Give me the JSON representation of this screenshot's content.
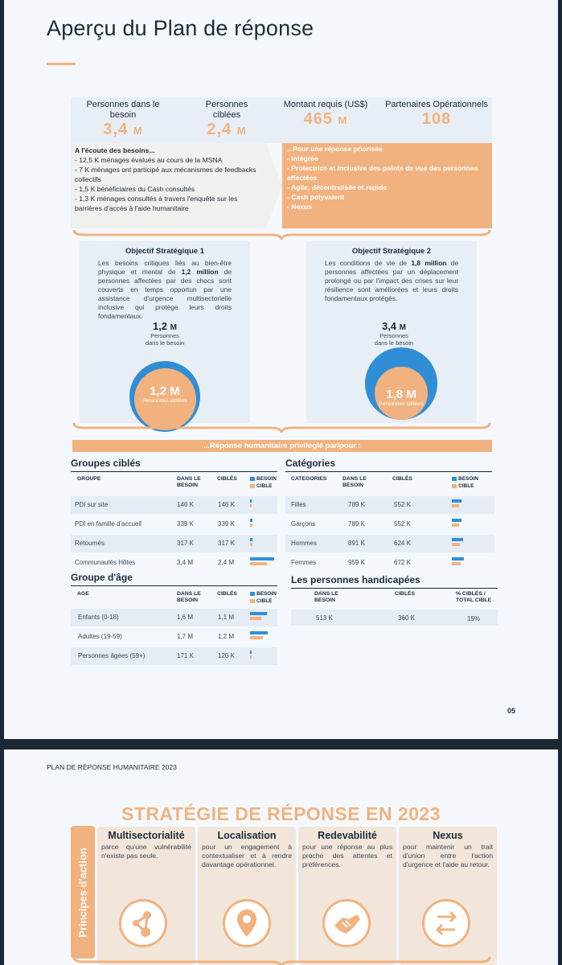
{
  "page1": {
    "title": "Aperçu du Plan de réponse",
    "kpis": [
      {
        "label": "Personnes dans le besoin",
        "value": "3,4",
        "unit": "M"
      },
      {
        "label": "Personnes ciblées",
        "value": "2,4",
        "unit": "M"
      },
      {
        "label": "Montant requis (US$)",
        "value": "465",
        "unit": "M"
      },
      {
        "label": "Partenaires Opérationnels",
        "value": "108",
        "unit": ""
      }
    ],
    "ecoute": {
      "heading": "A l'écoute des besoins...",
      "items": [
        "12,5 K ménages évalués au cours de la MSNA",
        "7 K ménages ont participé aux mécanismes de feedbacks collectifs",
        "1,5 K bénéficiaires du Cash consultés",
        "1,3 K ménages consultés à travers l'enquête sur les barrières d'accès à l'aide humanitaire"
      ]
    },
    "reponse": {
      "heading": "...Pour une réponse priorisée",
      "items": [
        "Intégrée",
        "Protectrice et inclusive des points de vue des personnes affectées",
        "Agile, décentralisée et rapide",
        "Cash polyvalent",
        "Nexus"
      ]
    },
    "objectifs": [
      {
        "title": "Objectif Stratégique 1",
        "text_before": "Les besoins critiques liés au bien-être physique et mental de ",
        "text_bold": "1,2 million",
        "text_after": " de personnes affectées par des chocs sont couverts en temps opportun par une assistance d'urgence multisectorielle inclusive qui protège leurs droits fondamentaux.",
        "besoin_value": "1,2",
        "besoin_unit": "M",
        "besoin_label": "Personnes dans le besoin",
        "cible_value": "1,2 M",
        "cible_label": "Personnes ciblées",
        "cible_fraction": 1.0
      },
      {
        "title": "Objectif Stratégique 2",
        "text_before": "Les conditions de vie de ",
        "text_bold": "1,8 million",
        "text_after": " de personnes affectées par un déplacement prolongé ou par l'impact des crises sur leur résilience sont améliorées et leurs droits fondamentaux protégés.",
        "besoin_value": "3,4",
        "besoin_unit": "M",
        "besoin_label": "Personnes dans le besoin",
        "cible_value": "1,8 M",
        "cible_label": "Personnes ciblées",
        "cible_fraction": 0.53
      }
    ],
    "banner": "...Réponse humanitaire privilégié par/pour :",
    "legend": {
      "besoin": "BESOIN",
      "cible": "CIBLE",
      "cible2": "CIBLE"
    },
    "groupes": {
      "title": "Groupes ciblés",
      "headers": [
        "GROUPE",
        "DANS LE BESOIN",
        "CIBLÉS"
      ],
      "rows": [
        {
          "label": "PDI sur site",
          "besoin": "146 K",
          "cibles": "146 K",
          "b": 0.146,
          "c": 0.146
        },
        {
          "label": "PDI en famille d'accueil",
          "besoin": "339 K",
          "cibles": "339 K",
          "b": 0.339,
          "c": 0.339
        },
        {
          "label": "Retournés",
          "besoin": "317 K",
          "cibles": "317 K",
          "b": 0.317,
          "c": 0.317
        },
        {
          "label": "Communautés Hôtes",
          "besoin": "3,4 M",
          "cibles": "2,4 M",
          "b": 3.4,
          "c": 2.4
        }
      ]
    },
    "categories": {
      "title": "Catégories",
      "headers": [
        "CATEGORIES",
        "DANS LE BESOIN",
        "CIBLÉS"
      ],
      "rows": [
        {
          "label": "Filles",
          "besoin": "789 K",
          "cibles": "552 K",
          "b": 789,
          "c": 552
        },
        {
          "label": "Garçons",
          "besoin": "789 K",
          "cibles": "552 K",
          "b": 789,
          "c": 552
        },
        {
          "label": "Hommes",
          "besoin": "891 K",
          "cibles": "624 K",
          "b": 891,
          "c": 624
        },
        {
          "label": "Femmes",
          "besoin": "959 K",
          "cibles": "672 K",
          "b": 959,
          "c": 672
        }
      ]
    },
    "age": {
      "title": "Groupe d'âge",
      "headers": [
        "AGE",
        "DANS LE BESOIN",
        "CIBLÉS"
      ],
      "rows": [
        {
          "label": "Enfants (0-18)",
          "besoin": "1,6 M",
          "cibles": "1,1 M",
          "b": 1.6,
          "c": 1.1
        },
        {
          "label": "Adultes (19-59)",
          "besoin": "1,7 M",
          "cibles": "1,2 M",
          "b": 1.7,
          "c": 1.2
        },
        {
          "label": "Personnes âgées (59+)",
          "besoin": "171 K",
          "cibles": "120 K",
          "b": 0.171,
          "c": 0.12
        }
      ]
    },
    "handicap": {
      "title": "Les personnes handicapées",
      "headers": [
        "DANS LE BESOIN",
        "CIBLÉS",
        "% CIBLÉS / TOTAL CIBLE"
      ],
      "row": {
        "besoin": "513 K",
        "cibles": "360 K",
        "pct": "15%"
      }
    },
    "page_number": "05"
  },
  "page2": {
    "header": "PLAN DE RÉPONSE HUMANITAIRE 2023",
    "title": "STRATÉGIE DE RÉPONSE EN 2023",
    "principes": "Principes d'action",
    "cards": [
      {
        "title": "Multisectorialité",
        "text": "parce qu'une vulnérabilité n'existe pas seule.",
        "icon": "network-icon"
      },
      {
        "title": "Localisation",
        "text": "pour un engagement à contextualiser et à rendre davantage opérationnel.",
        "icon": "location-pin-icon"
      },
      {
        "title": "Redevabilité",
        "text": "pour une réponse au plus proche des attentes et préférences.",
        "icon": "handshake-icon"
      },
      {
        "title": "Nexus",
        "text": "pour maintenir un trait d'union entre l'action d'urgence et l'aide au retour.",
        "icon": "exchange-arrows-icon"
      }
    ]
  },
  "colors": {
    "accent": "#f1b27f",
    "blue": "#2f8ed6",
    "dark": "#1d2a3a"
  }
}
